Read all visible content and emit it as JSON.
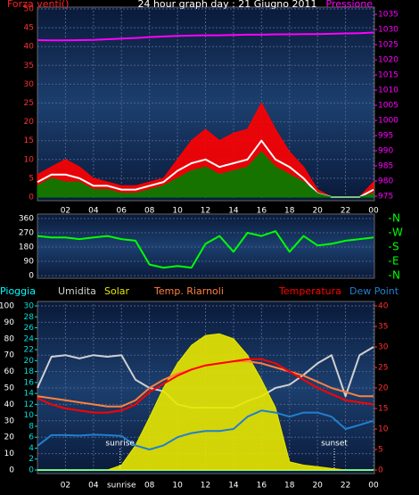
{
  "chart_data": [
    {
      "type": "line",
      "title": "24 hour graph day : 21 Giugno 2011",
      "y_label": "Forza venti()",
      "y2_label": "Pressione",
      "x": [
        0,
        1,
        2,
        3,
        4,
        5,
        6,
        7,
        8,
        9,
        10,
        11,
        12,
        13,
        14,
        15,
        16,
        17,
        18,
        19,
        20,
        21,
        22,
        23,
        24
      ],
      "xlim": [
        0,
        24
      ],
      "xticks": [
        {
          "value": 2,
          "label": "02"
        },
        {
          "value": 4,
          "label": "04"
        },
        {
          "value": 6,
          "label": "06"
        },
        {
          "value": 8,
          "label": "08"
        },
        10,
        12,
        14,
        16,
        18,
        20,
        22,
        {
          "value": 24,
          "label": "00"
        }
      ],
      "ylim": [
        0,
        50
      ],
      "yticks": [
        0,
        5,
        10,
        15,
        20,
        25,
        30,
        35,
        40,
        45,
        50
      ],
      "y2lim": [
        974.7,
        1036.8
      ],
      "y2ticks": [
        975,
        980,
        985,
        990,
        995,
        1000,
        1005,
        1010,
        1015,
        1020,
        1025,
        1030,
        1035
      ],
      "grid": true,
      "series": [
        {
          "color": "#ff0000",
          "fill": true,
          "values": [
            6,
            8,
            10,
            8,
            5,
            4,
            3,
            3,
            4,
            5,
            10,
            15,
            18,
            15,
            17,
            18,
            25,
            18,
            12,
            8,
            2,
            0,
            0,
            0,
            4
          ]
        },
        {
          "color": "#ffffff",
          "values": [
            4,
            6,
            6,
            5,
            3,
            3,
            2,
            2,
            3,
            4,
            7,
            9,
            10,
            8,
            9,
            10,
            15,
            10,
            8,
            5,
            1,
            0,
            0,
            0,
            2
          ]
        },
        {
          "color": "#008000",
          "fill": true,
          "values": [
            3,
            5,
            4,
            4,
            2,
            2,
            1,
            1,
            2,
            3,
            5,
            7,
            8,
            6,
            7,
            8,
            12,
            8,
            6,
            4,
            1,
            0,
            0,
            0,
            1
          ]
        },
        {
          "color": "#ff00ff",
          "axis": "y2",
          "values": [
            1026.5,
            1026.4,
            1026.4,
            1026.5,
            1026.6,
            1026.8,
            1027,
            1027.2,
            1027.5,
            1027.7,
            1027.9,
            1028,
            1028.1,
            1028.1,
            1028.2,
            1028.3,
            1028.3,
            1028.4,
            1028.4,
            1028.5,
            1028.5,
            1028.6,
            1028.7,
            1028.8,
            1029
          ]
        }
      ]
    },
    {
      "type": "line",
      "x": [
        0,
        1,
        2,
        3,
        4,
        5,
        6,
        7,
        8,
        9,
        10,
        11,
        12,
        13,
        14,
        15,
        16,
        17,
        18,
        19,
        20,
        21,
        22,
        23,
        24
      ],
      "xlim": [
        0,
        24
      ],
      "ylim": [
        0,
        360
      ],
      "yticks": [
        0,
        90,
        180,
        270,
        360
      ],
      "y2lim": [
        0,
        360
      ],
      "y2ticks": [
        {
          "value": 360,
          "label": "N"
        },
        {
          "value": 270,
          "label": "W"
        },
        {
          "value": 180,
          "label": "S"
        },
        {
          "value": 90,
          "label": "E"
        },
        {
          "value": 0,
          "label": "N"
        }
      ],
      "grid": true,
      "series": [
        {
          "color": "#00ff00",
          "values": [
            250,
            240,
            240,
            230,
            240,
            250,
            230,
            220,
            70,
            50,
            60,
            50,
            200,
            250,
            150,
            270,
            250,
            280,
            150,
            250,
            190,
            200,
            220,
            230,
            240
          ]
        }
      ]
    },
    {
      "type": "line",
      "x": [
        0,
        1,
        2,
        3,
        4,
        5,
        6,
        7,
        8,
        9,
        10,
        11,
        12,
        13,
        14,
        15,
        16,
        17,
        18,
        19,
        20,
        21,
        22,
        23,
        24
      ],
      "xlim": [
        0,
        24
      ],
      "xticks": [
        {
          "value": 2,
          "label": "02"
        },
        {
          "value": 4,
          "label": "04"
        },
        {
          "value": 6,
          "label": "sunrise"
        },
        {
          "value": 8,
          "label": "08"
        },
        10,
        12,
        14,
        16,
        18,
        20,
        22,
        {
          "value": 24,
          "label": "00"
        }
      ],
      "ylim": [
        0,
        100
      ],
      "yticks": [
        0,
        10,
        20,
        30,
        40,
        50,
        60,
        70,
        80,
        90,
        100
      ],
      "y3lim": [
        0,
        30
      ],
      "y3ticks": [
        0,
        2,
        4,
        6,
        8,
        10,
        12,
        14,
        16,
        18,
        20,
        22,
        24,
        26,
        28,
        30
      ],
      "y2lim": [
        0,
        40
      ],
      "y2ticks": [
        0,
        5,
        10,
        15,
        20,
        25,
        30,
        35,
        40
      ],
      "grid": true,
      "annotations": [
        {
          "text": "sunrise",
          "x": 5.9
        },
        {
          "text": "sunset",
          "x": 21.2
        }
      ],
      "series": [
        {
          "name": "Pioggia",
          "color": "#00ffff",
          "axis": "y3",
          "values": [
            0,
            0,
            0,
            0,
            0,
            0,
            0,
            0,
            0,
            0,
            0,
            0,
            0,
            0,
            0,
            0,
            0,
            0,
            0,
            0,
            0,
            0,
            0,
            0,
            0
          ]
        },
        {
          "name": "Umidita",
          "color": "#d0d0d0",
          "values": [
            50,
            69,
            70,
            68,
            70,
            69,
            70,
            55,
            50,
            48,
            40,
            38,
            38,
            38,
            38,
            42,
            45,
            50,
            52,
            58,
            65,
            70,
            45,
            70,
            75
          ]
        },
        {
          "name": "Solar",
          "color": "#e8e800",
          "fill": true,
          "values": [
            0,
            0,
            0,
            0,
            0,
            0,
            3,
            15,
            32,
            50,
            65,
            76,
            82,
            83,
            80,
            70,
            55,
            38,
            5,
            3,
            2,
            1,
            0,
            0,
            0
          ]
        },
        {
          "name": "Temp. Riarnoli",
          "color": "#ff8040",
          "axis": "y2",
          "values": [
            18,
            17.5,
            17,
            16.5,
            16,
            15.5,
            15.5,
            17,
            20,
            22,
            23.5,
            24.5,
            25.5,
            26,
            26.5,
            26.5,
            26,
            25,
            24,
            23,
            21.5,
            20,
            19,
            18,
            18
          ]
        },
        {
          "name": "Temperatura",
          "color": "#ff0000",
          "axis": "y2",
          "values": [
            17.5,
            16,
            15,
            14.5,
            14,
            14,
            14.5,
            16,
            19,
            21,
            23,
            24.5,
            25.5,
            26,
            26.5,
            27,
            27,
            26,
            24,
            22,
            20,
            18.5,
            17,
            16.5,
            16
          ]
        },
        {
          "name": "Dew Point",
          "color": "#2080d0",
          "axis": "y2",
          "values": [
            5.9,
            8.5,
            8.5,
            8.4,
            8.6,
            8.5,
            8.3,
            6,
            5,
            6,
            8,
            9,
            9.5,
            9.5,
            10,
            13,
            14.5,
            14,
            13,
            14,
            14,
            13,
            10,
            11,
            12
          ]
        }
      ]
    }
  ]
}
